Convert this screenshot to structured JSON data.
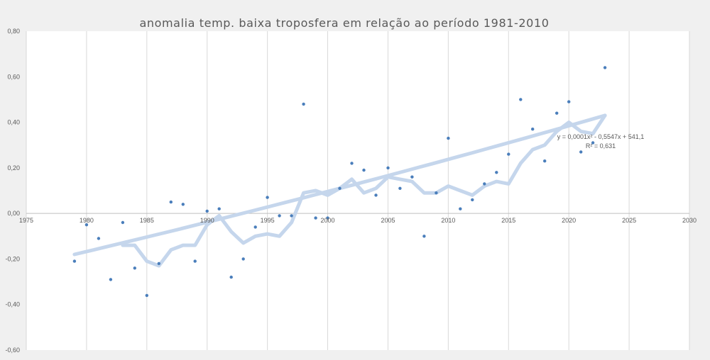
{
  "chart_data": {
    "type": "scatter",
    "title": "anomalia temp. baixa troposfera  em relação ao período 1981-2010",
    "xlabel": "",
    "ylabel": "",
    "xlim": [
      1975,
      2030
    ],
    "ylim": [
      -0.6,
      0.8
    ],
    "x_ticks": [
      1975,
      1980,
      1985,
      1990,
      1995,
      2000,
      2005,
      2010,
      2015,
      2020,
      2025,
      2030
    ],
    "y_ticks": [
      -0.6,
      -0.4,
      -0.2,
      0.0,
      0.2,
      0.4,
      0.6,
      0.8
    ],
    "x_tick_labels": [
      "1975",
      "1980",
      "1985",
      "1990",
      "1995",
      "2000",
      "2005",
      "2010",
      "2015",
      "2020",
      "2025",
      "2030"
    ],
    "y_tick_labels": [
      "-0,60",
      "-0,40",
      "-0,20",
      "0,00",
      "0,20",
      "0,40",
      "0,60",
      "0,80"
    ],
    "grid": "vertical",
    "legend": "none",
    "colors": {
      "points": "#4a7ebb",
      "smooth_line": "#c5d6ec",
      "trend_line": "#c5d6ec",
      "grid": "#d9d9d9",
      "zero_axis": "#bfbfbf",
      "background": "#f0f0f0"
    },
    "series": [
      {
        "type": "scatter",
        "x": [
          1979,
          1980,
          1981,
          1982,
          1983,
          1984,
          1985,
          1986,
          1987,
          1988,
          1989,
          1990,
          1991,
          1992,
          1993,
          1994,
          1995,
          1996,
          1997,
          1998,
          1999,
          2000,
          2001,
          2002,
          2003,
          2004,
          2005,
          2006,
          2007,
          2008,
          2009,
          2010,
          2011,
          2012,
          2013,
          2014,
          2015,
          2016,
          2017,
          2018,
          2019,
          2020,
          2021,
          2022,
          2023
        ],
        "values": [
          -0.21,
          -0.05,
          -0.11,
          -0.29,
          -0.04,
          -0.24,
          -0.36,
          -0.22,
          0.05,
          0.04,
          -0.21,
          0.01,
          0.02,
          -0.28,
          -0.2,
          -0.06,
          0.07,
          -0.01,
          -0.01,
          0.48,
          -0.02,
          -0.02,
          0.11,
          0.22,
          0.19,
          0.08,
          0.2,
          0.11,
          0.16,
          -0.1,
          0.09,
          0.33,
          0.02,
          0.06,
          0.13,
          0.18,
          0.26,
          0.5,
          0.37,
          0.23,
          0.44,
          0.49,
          0.27,
          0.31,
          0.64
        ]
      },
      {
        "type": "line",
        "x": [
          1983,
          1984,
          1985,
          1986,
          1987,
          1988,
          1989,
          1990,
          1991,
          1992,
          1993,
          1994,
          1995,
          1996,
          1997,
          1998,
          1999,
          2000,
          2001,
          2002,
          2003,
          2004,
          2005,
          2006,
          2007,
          2008,
          2009,
          2010,
          2011,
          2012,
          2013,
          2014,
          2015,
          2016,
          2017,
          2018,
          2019,
          2020,
          2021,
          2022,
          2023
        ],
        "values": [
          -0.14,
          -0.14,
          -0.21,
          -0.23,
          -0.16,
          -0.14,
          -0.14,
          -0.05,
          -0.01,
          -0.08,
          -0.13,
          -0.1,
          -0.09,
          -0.1,
          -0.04,
          0.09,
          0.1,
          0.08,
          0.11,
          0.15,
          0.09,
          0.11,
          0.16,
          0.15,
          0.14,
          0.09,
          0.09,
          0.12,
          0.1,
          0.08,
          0.12,
          0.14,
          0.13,
          0.22,
          0.28,
          0.3,
          0.36,
          0.4,
          0.36,
          0.35,
          0.43
        ]
      },
      {
        "type": "trendline",
        "x": [
          1979,
          2023
        ],
        "values": [
          -0.18,
          0.43
        ]
      }
    ],
    "annotations": {
      "equation": "y = 0,0001x² - 0,5547x + 541,1",
      "r_squared": "R² = 0,631"
    }
  }
}
